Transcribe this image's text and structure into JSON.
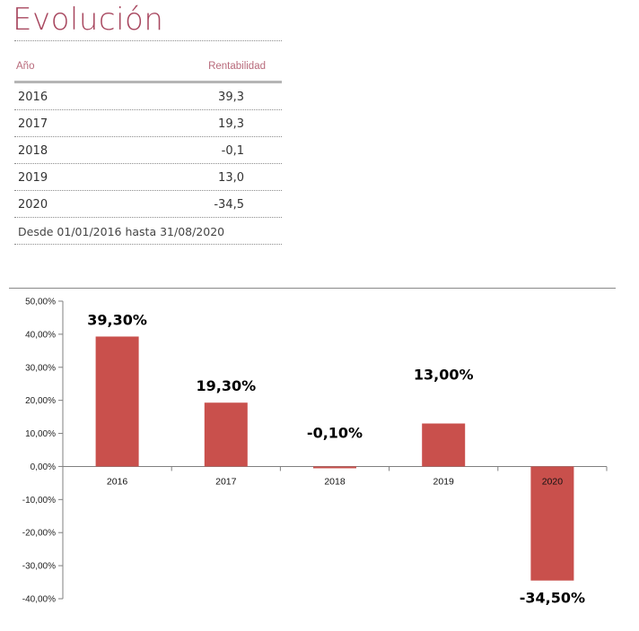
{
  "heading": "Evolución",
  "table": {
    "col_year": "Año",
    "col_return": "Rentabilidad",
    "rows": [
      {
        "year": "2016",
        "value": "39,3"
      },
      {
        "year": "2017",
        "value": "19,3"
      },
      {
        "year": "2018",
        "value": "-0,1"
      },
      {
        "year": "2019",
        "value": "13,0"
      },
      {
        "year": "2020",
        "value": "-34,5"
      }
    ],
    "footnote": "Desde 01/01/2016 hasta 31/08/2020"
  },
  "colors": {
    "bar": "#c9504c",
    "heading": "#a8475f"
  },
  "chart_data": {
    "type": "bar",
    "categories": [
      "2016",
      "2017",
      "2018",
      "2019",
      "2020"
    ],
    "values": [
      39.3,
      19.3,
      -0.1,
      13.0,
      -34.5
    ],
    "data_labels": [
      "39,30%",
      "19,30%",
      "-0,10%",
      "13,00%",
      "-34,50%"
    ],
    "ylim": [
      -40,
      50
    ],
    "yticks": [
      50,
      40,
      30,
      20,
      10,
      0,
      -10,
      -20,
      -30,
      -40
    ],
    "ytick_labels": [
      "50,00%",
      "40,00%",
      "30,00%",
      "20,00%",
      "10,00%",
      "0,00%",
      "-10,00%",
      "-20,00%",
      "-30,00%",
      "-40,00%"
    ],
    "grid": false,
    "legend": "none"
  }
}
